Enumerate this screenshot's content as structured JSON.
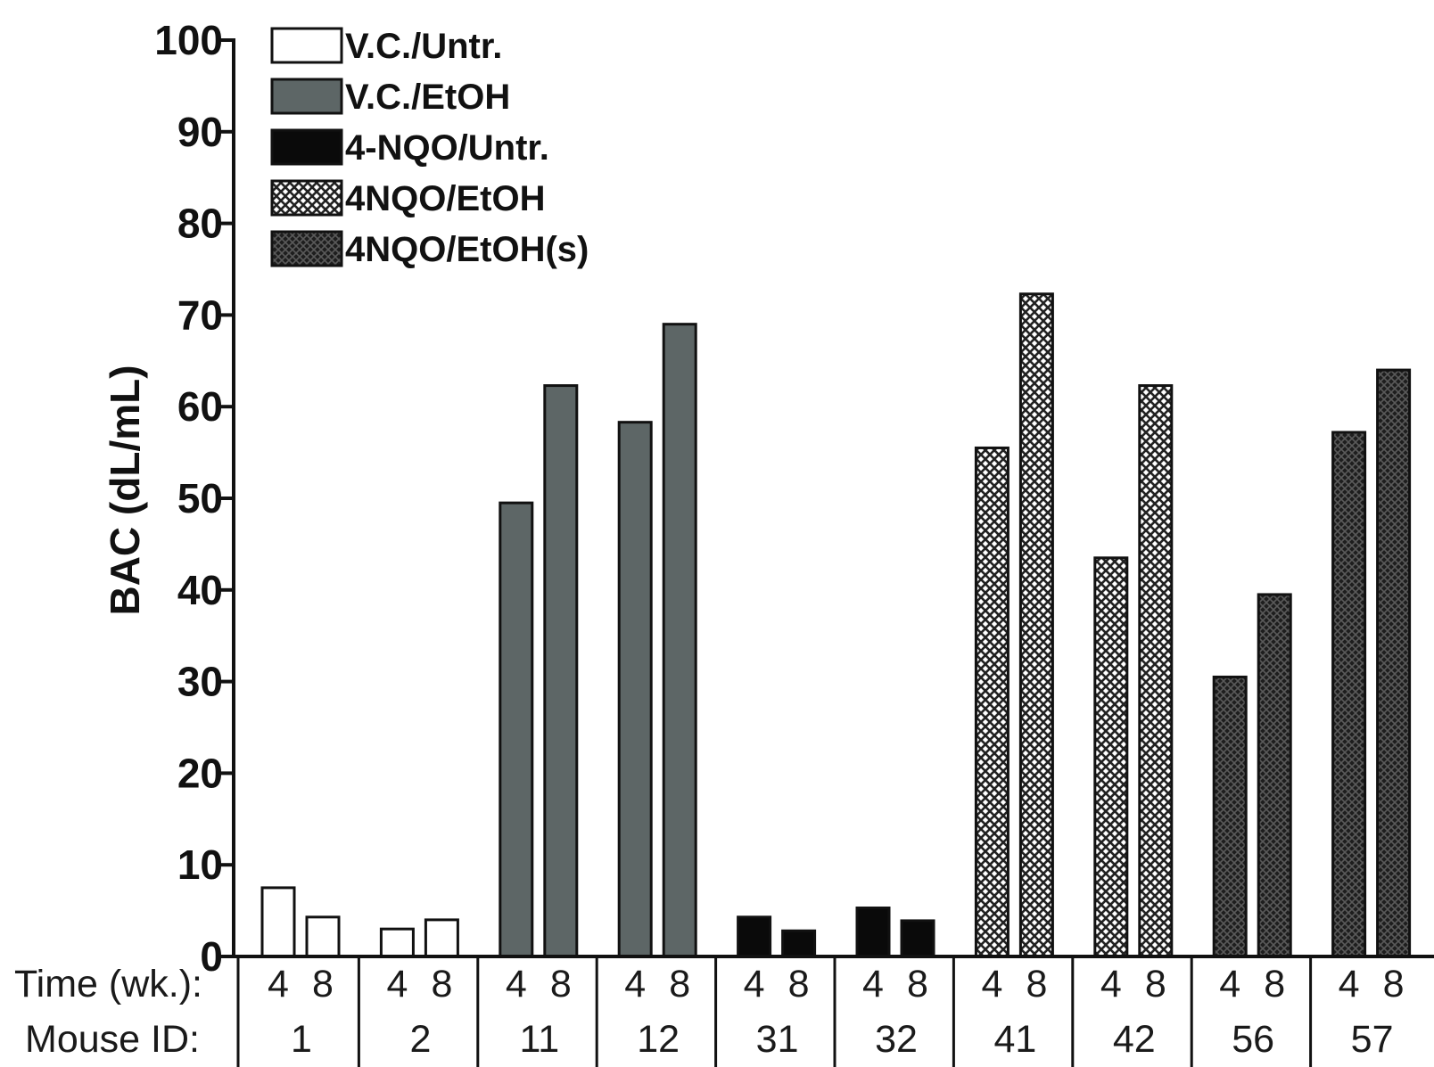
{
  "chart_data": {
    "type": "bar",
    "ylabel": "BAC (dL/mL)",
    "ylim": [
      0,
      100
    ],
    "yticks": [
      "0",
      "10",
      "20",
      "30",
      "40",
      "50",
      "60",
      "70",
      "80",
      "90",
      "100"
    ],
    "grid": false,
    "legend_position": "top-left",
    "legend": [
      {
        "name": "V.C./Untr.",
        "fill": "#ffffff",
        "pattern": "solid"
      },
      {
        "name": "V.C./EtOH",
        "fill": "#5d6666",
        "pattern": "solid"
      },
      {
        "name": "4-NQO/Untr.",
        "fill": "#0a0a0a",
        "pattern": "solid"
      },
      {
        "name": "4NQO/EtOH",
        "fill": "#ffffff",
        "pattern": "crosshatch-light"
      },
      {
        "name": "4NQO/EtOH(s)",
        "fill": "#2a2a2a",
        "pattern": "crosshatch-dark"
      }
    ],
    "row_labels": {
      "time": "Time (wk.):",
      "mouse": "Mouse ID:"
    },
    "groups": [
      {
        "mouse_id": "1",
        "group": 0,
        "times": [
          "4",
          "8"
        ],
        "values": [
          7.5,
          4.3
        ]
      },
      {
        "mouse_id": "2",
        "group": 0,
        "times": [
          "4",
          "8"
        ],
        "values": [
          3.0,
          4.0
        ]
      },
      {
        "mouse_id": "11",
        "group": 1,
        "times": [
          "4",
          "8"
        ],
        "values": [
          49.5,
          62.3
        ]
      },
      {
        "mouse_id": "12",
        "group": 1,
        "times": [
          "4",
          "8"
        ],
        "values": [
          58.3,
          69.0
        ]
      },
      {
        "mouse_id": "31",
        "group": 2,
        "times": [
          "4",
          "8"
        ],
        "values": [
          4.3,
          2.8
        ]
      },
      {
        "mouse_id": "32",
        "group": 2,
        "times": [
          "4",
          "8"
        ],
        "values": [
          5.3,
          3.9
        ]
      },
      {
        "mouse_id": "41",
        "group": 3,
        "times": [
          "4",
          "8"
        ],
        "values": [
          55.5,
          72.3
        ]
      },
      {
        "mouse_id": "42",
        "group": 3,
        "times": [
          "4",
          "8"
        ],
        "values": [
          43.5,
          62.3
        ]
      },
      {
        "mouse_id": "56",
        "group": 4,
        "times": [
          "4",
          "8"
        ],
        "values": [
          30.5,
          39.5
        ]
      },
      {
        "mouse_id": "57",
        "group": 4,
        "times": [
          "4",
          "8"
        ],
        "values": [
          57.2,
          64.0
        ]
      }
    ]
  }
}
